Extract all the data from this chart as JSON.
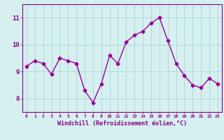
{
  "x": [
    0,
    1,
    2,
    3,
    4,
    5,
    6,
    7,
    8,
    9,
    10,
    11,
    12,
    13,
    14,
    15,
    16,
    17,
    18,
    19,
    20,
    21,
    22,
    23
  ],
  "y": [
    9.2,
    9.4,
    9.3,
    8.9,
    9.5,
    9.4,
    9.3,
    8.3,
    7.85,
    8.55,
    9.6,
    9.3,
    10.1,
    10.35,
    10.5,
    10.8,
    11.0,
    10.15,
    9.3,
    8.85,
    8.5,
    8.4,
    8.75,
    8.55
  ],
  "line_color": "#990099",
  "marker": "D",
  "marker_size": 2.5,
  "line_width": 1.0,
  "background_color": "#d6f0f0",
  "grid_color": "#b0d8d8",
  "xlabel": "Windchill (Refroidissement éolien,°C)",
  "xlabel_color": "#880088",
  "tick_color": "#880088",
  "ylim": [
    7.5,
    11.5
  ],
  "xlim": [
    -0.5,
    23.5
  ],
  "yticks": [
    8,
    9,
    10,
    11
  ],
  "xticks": [
    0,
    1,
    2,
    3,
    4,
    5,
    6,
    7,
    8,
    9,
    10,
    11,
    12,
    13,
    14,
    15,
    16,
    17,
    18,
    19,
    20,
    21,
    22,
    23
  ],
  "xtick_labels": [
    "0",
    "1",
    "2",
    "3",
    "4",
    "5",
    "6",
    "7",
    "8",
    "9",
    "10",
    "11",
    "12",
    "13",
    "14",
    "15",
    "16",
    "17",
    "18",
    "19",
    "20",
    "21",
    "22",
    "23"
  ]
}
